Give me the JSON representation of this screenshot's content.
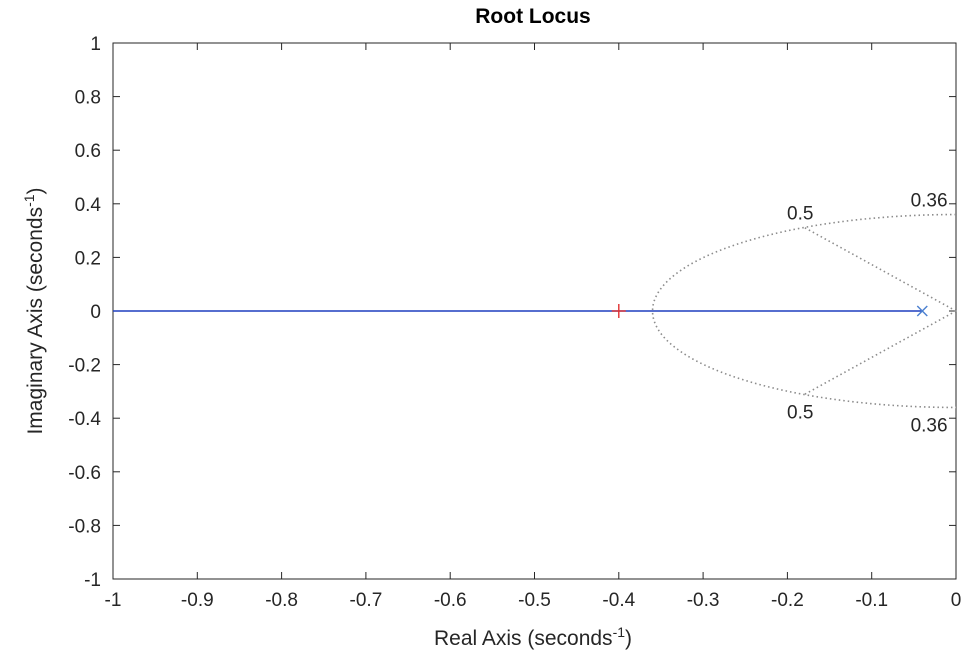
{
  "chart_data": {
    "type": "scatter",
    "title": "Root Locus",
    "xlabel": {
      "text": "Real Axis (seconds",
      "sup": "-1",
      "close": ")"
    },
    "ylabel": {
      "text": "Imaginary Axis (seconds",
      "sup": "-1",
      "close": ")"
    },
    "xlim": [
      -1,
      0
    ],
    "ylim": [
      -1,
      1
    ],
    "grid": false,
    "xticks": [
      -1,
      -0.9,
      -0.8,
      -0.7,
      -0.6,
      -0.5,
      -0.4,
      -0.3,
      -0.2,
      -0.1,
      0
    ],
    "xtick_labels": [
      "-1",
      "-0.9",
      "-0.8",
      "-0.7",
      "-0.6",
      "-0.5",
      "-0.4",
      "-0.3",
      "-0.2",
      "-0.1",
      "0"
    ],
    "yticks": [
      1,
      0.8,
      0.6,
      0.4,
      0.2,
      0,
      -0.2,
      -0.4,
      -0.6,
      -0.8,
      -1
    ],
    "ytick_labels": [
      "1",
      "0.8",
      "0.6",
      "0.4",
      "0.2",
      "0",
      "-0.2",
      "-0.4",
      "-0.6",
      "-0.8",
      "-1"
    ],
    "locus": {
      "color": "#1f3fbf",
      "x": [
        -1,
        -0.04
      ],
      "y": [
        0,
        0
      ]
    },
    "poles": [
      {
        "x": -0.04,
        "y": 0,
        "color": "#4a7fd0"
      }
    ],
    "zeros": [],
    "closed_loop_markers": [
      {
        "x": -0.4,
        "y": 0,
        "color": "#e03030"
      }
    ],
    "damping_lines": [
      {
        "zeta": 0.5,
        "label": "0.5"
      }
    ],
    "frequency_circles": [
      {
        "wn": 0.36,
        "label": "0.36"
      }
    ],
    "colors": {
      "axes": "#262626",
      "grid_lines": "#8c8c8c",
      "background": "#ffffff"
    }
  }
}
